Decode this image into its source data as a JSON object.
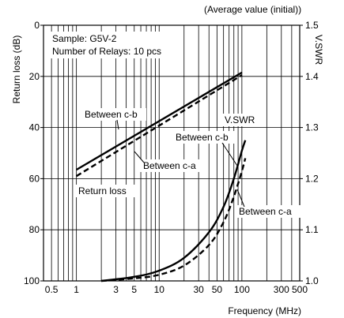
{
  "chart_data": {
    "type": "line",
    "header_note": "(Average value (initial))",
    "sample_label": "Sample: G5V-2",
    "relays_label": "Number of Relays: 10 pcs",
    "xlabel": "Frequency (MHz)",
    "ylabel_left": "Return loss (dB)",
    "ylabel_right": "V.SWR",
    "x_scale": "log",
    "xlim": [
      0.4,
      500
    ],
    "x_ticks": [
      {
        "v": 0.5,
        "label": "0.5"
      },
      {
        "v": 1,
        "label": "1"
      },
      {
        "v": 3,
        "label": "3"
      },
      {
        "v": 5,
        "label": "5"
      },
      {
        "v": 10,
        "label": "10"
      },
      {
        "v": 30,
        "label": "30"
      },
      {
        "v": 50,
        "label": "50"
      },
      {
        "v": 100,
        "label": "100"
      },
      {
        "v": 300,
        "label": "300"
      },
      {
        "v": 500,
        "label": "500"
      }
    ],
    "y_left_ticks": [
      {
        "v": 0,
        "label": "0"
      },
      {
        "v": 20,
        "label": "20"
      },
      {
        "v": 40,
        "label": "40"
      },
      {
        "v": 60,
        "label": "60"
      },
      {
        "v": 80,
        "label": "80"
      },
      {
        "v": 100,
        "label": "100"
      }
    ],
    "y_left_lim": [
      0,
      100
    ],
    "y_right_ticks": [
      {
        "v": 1.5,
        "label": "1.5"
      },
      {
        "v": 1.4,
        "label": "1.4"
      },
      {
        "v": 1.3,
        "label": "1.3"
      },
      {
        "v": 1.2,
        "label": "1.2"
      },
      {
        "v": 1.1,
        "label": "1.1"
      },
      {
        "v": 1.0,
        "label": "1.0"
      }
    ],
    "y_right_lim": [
      1.0,
      1.5
    ],
    "grid": true,
    "series": [
      {
        "group": "Return loss",
        "name": "Between c-b",
        "axis": "left",
        "style": "solid",
        "x": [
          1,
          100
        ],
        "y": [
          56.5,
          18.5
        ]
      },
      {
        "group": "Return loss",
        "name": "Between c-a",
        "axis": "left",
        "style": "dashed",
        "x": [
          1,
          100
        ],
        "y": [
          59,
          19.5
        ]
      },
      {
        "group": "V.SWR",
        "name": "Between c-b",
        "axis": "right",
        "style": "solid",
        "x": [
          2,
          5,
          10,
          20,
          40,
          60,
          80,
          100,
          110
        ],
        "y": [
          1.0,
          1.008,
          1.02,
          1.045,
          1.095,
          1.145,
          1.2,
          1.255,
          1.275
        ]
      },
      {
        "group": "V.SWR",
        "name": "Between c-a",
        "axis": "right",
        "style": "dashed",
        "x": [
          2,
          5,
          10,
          20,
          40,
          60,
          80,
          100,
          110
        ],
        "y": [
          1.0,
          1.005,
          1.012,
          1.03,
          1.07,
          1.115,
          1.165,
          1.215,
          1.24
        ]
      }
    ],
    "annotations": {
      "rl_cb": "Between c-b",
      "rl_ca": "Between c-a",
      "return_loss": "Return loss",
      "vswr": "V.SWR",
      "vswr_cb": "Between c-b",
      "vswr_ca": "Between c-a"
    }
  }
}
